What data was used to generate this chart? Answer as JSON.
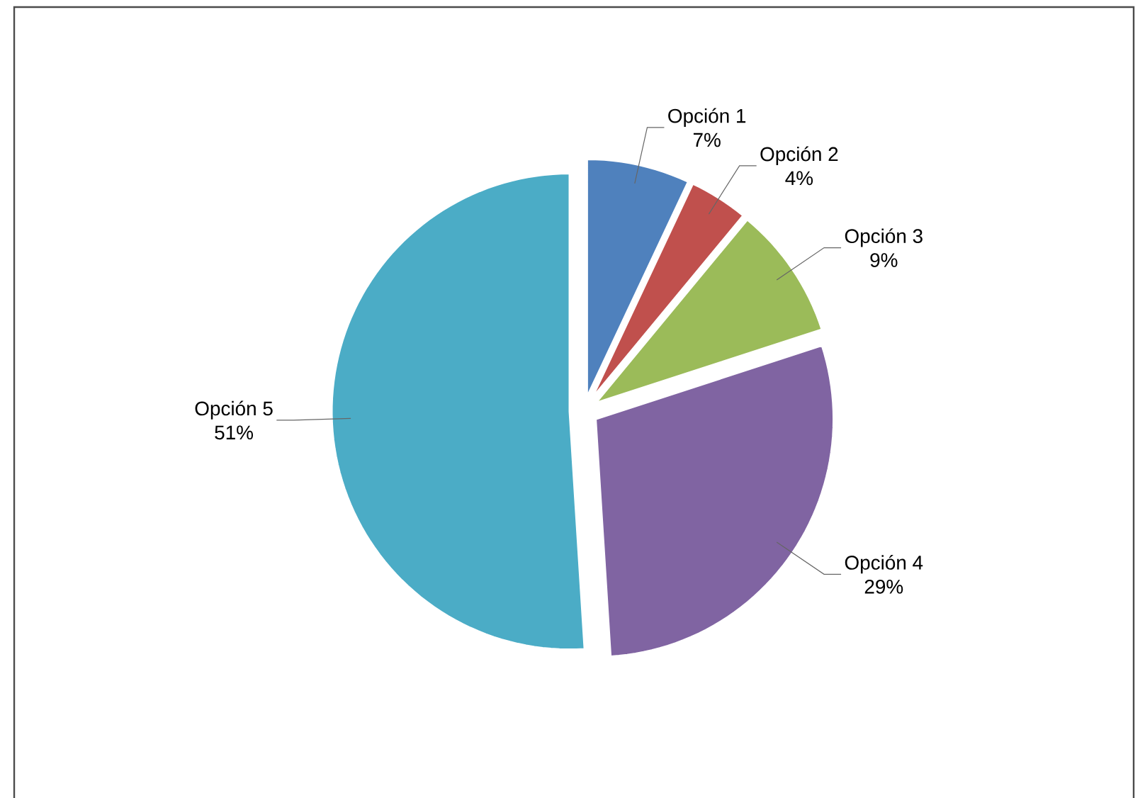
{
  "chart_data": {
    "type": "pie",
    "categories": [
      "Opción 1",
      "Opción 2",
      "Opción 3",
      "Opción 4",
      "Opción 5"
    ],
    "values": [
      7,
      4,
      9,
      29,
      51
    ],
    "value_labels": [
      "7%",
      "4%",
      "9%",
      "29%",
      "51%"
    ],
    "colors": [
      "#4f81bd",
      "#c0504d",
      "#9bbb59",
      "#8064a2",
      "#4bacc6"
    ]
  }
}
